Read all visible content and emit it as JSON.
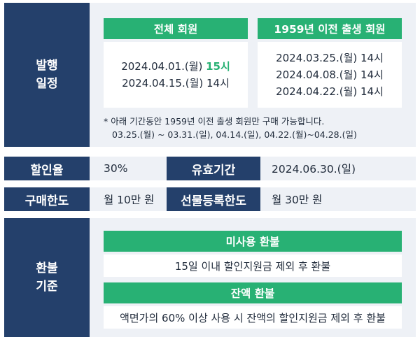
{
  "schedule": {
    "label_line1": "발행",
    "label_line2": "일정",
    "all_members": {
      "title": "전체 회원",
      "date1": "2024.04.01.(월)",
      "date1_time": "15시",
      "date2": "2024.04.15.(월) 14시"
    },
    "born_before_1959": {
      "title": "1959년 이전 출생 회원",
      "dates": [
        "2024.03.25.(월) 14시",
        "2024.04.08.(월) 14시",
        "2024.04.22.(월) 14시"
      ]
    },
    "note_line1": "* 아래 기간동안 1959년 이전 출생 회원만 구매 가능합니다.",
    "note_line2": "03.25.(월) ~ 03.31.(일), 04.14.(일), 04.22.(월)~04.28.(일)"
  },
  "discount": {
    "label": "할인율",
    "value": "30%"
  },
  "validity": {
    "label": "유효기간",
    "value": "2024.06.30.(일)"
  },
  "purchase_limit": {
    "label": "구매한도",
    "value": "월 10만 원"
  },
  "gift_limit": {
    "label": "선물등록한도",
    "value": "월 30만 원"
  },
  "refund": {
    "label_line1": "환불",
    "label_line2": "기준",
    "unused_title": "미사용 환불",
    "unused_text": "15일 이내 할인지원금 제외 후 환불",
    "balance_title": "잔액 환불",
    "balance_text": "액면가의 60% 이상 사용 시 잔액의 할인지원금 제외 후 환불"
  },
  "colors": {
    "navy": "#24406b",
    "green": "#28b174",
    "panel": "#eef1f6"
  }
}
